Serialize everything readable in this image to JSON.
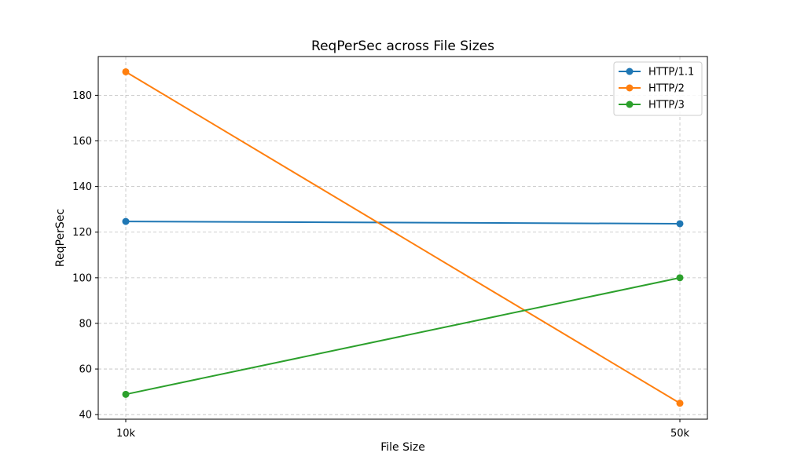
{
  "chart_data": {
    "type": "line",
    "title": "ReqPerSec across File Sizes",
    "xlabel": "File Size",
    "ylabel": "ReqPerSec",
    "categories": [
      "10k",
      "50k"
    ],
    "ylim": [
      38,
      197
    ],
    "yticks": [
      40,
      60,
      80,
      100,
      120,
      140,
      160,
      180
    ],
    "grid": true,
    "legend_position": "top-right",
    "series": [
      {
        "name": "HTTP/1.1",
        "color": "#1f77b4",
        "values": [
          124.7,
          123.7
        ]
      },
      {
        "name": "HTTP/2",
        "color": "#ff7f0e",
        "values": [
          190.3,
          45.0
        ]
      },
      {
        "name": "HTTP/3",
        "color": "#2ca02c",
        "values": [
          48.9,
          100.0
        ]
      }
    ]
  }
}
